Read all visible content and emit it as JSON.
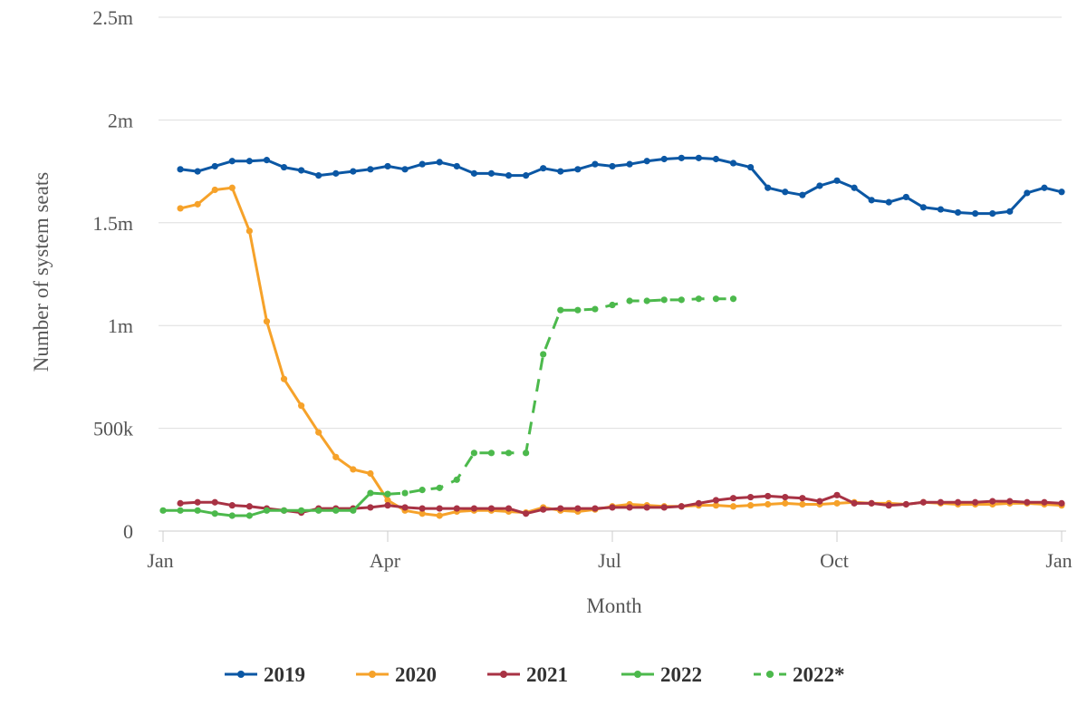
{
  "chart_data": {
    "type": "line",
    "title": "",
    "xlabel": "Month",
    "ylabel": "Number of system seats",
    "x_ticks": [
      "Jan",
      "Apr",
      "Jul",
      "Oct",
      "Jan"
    ],
    "x_tick_weeks": [
      0,
      13,
      26,
      39,
      52
    ],
    "x_range_weeks": [
      0,
      52
    ],
    "y_ticks": [
      {
        "value": 0,
        "label": "0"
      },
      {
        "value": 500000,
        "label": "500k"
      },
      {
        "value": 1000000,
        "label": "1m"
      },
      {
        "value": 1500000,
        "label": "1.5m"
      },
      {
        "value": 2000000,
        "label": "2m"
      },
      {
        "value": 2500000,
        "label": "2.5m"
      }
    ],
    "ylim": [
      0,
      2500000
    ],
    "grid": "horizontal",
    "legend_position": "bottom",
    "series": [
      {
        "name": "2019",
        "color": "#0b57a4",
        "dashed": false,
        "x": [
          1,
          2,
          3,
          4,
          5,
          6,
          7,
          8,
          9,
          10,
          11,
          12,
          13,
          14,
          15,
          16,
          17,
          18,
          19,
          20,
          21,
          22,
          23,
          24,
          25,
          26,
          27,
          28,
          29,
          30,
          31,
          32,
          33,
          34,
          35,
          36,
          37,
          38,
          39,
          40,
          41,
          42,
          43,
          44,
          45,
          46,
          47,
          48,
          49,
          50,
          51,
          52
        ],
        "y": [
          1760000,
          1750000,
          1775000,
          1800000,
          1800000,
          1805000,
          1770000,
          1755000,
          1730000,
          1740000,
          1750000,
          1760000,
          1775000,
          1760000,
          1785000,
          1795000,
          1775000,
          1740000,
          1740000,
          1730000,
          1730000,
          1765000,
          1750000,
          1760000,
          1785000,
          1775000,
          1785000,
          1800000,
          1810000,
          1815000,
          1815000,
          1810000,
          1790000,
          1770000,
          1670000,
          1650000,
          1635000,
          1680000,
          1705000,
          1670000,
          1610000,
          1600000,
          1625000,
          1575000,
          1565000,
          1550000,
          1545000,
          1545000,
          1555000,
          1645000,
          1670000,
          1650000
        ]
      },
      {
        "name": "2020",
        "color": "#f6a22a",
        "dashed": false,
        "x": [
          1,
          2,
          3,
          4,
          5,
          6,
          7,
          8,
          9,
          10,
          11,
          12,
          13,
          14,
          15,
          16,
          17,
          18,
          19,
          20,
          21,
          22,
          23,
          24,
          25,
          26,
          27,
          28,
          29,
          30,
          31,
          32,
          33,
          34,
          35,
          36,
          37,
          38,
          39,
          40,
          41,
          42,
          43,
          44,
          45,
          46,
          47,
          48,
          49,
          50,
          51,
          52
        ],
        "y": [
          1570000,
          1590000,
          1660000,
          1670000,
          1460000,
          1020000,
          740000,
          610000,
          480000,
          360000,
          300000,
          280000,
          150000,
          100000,
          85000,
          75000,
          95000,
          100000,
          100000,
          95000,
          90000,
          115000,
          100000,
          95000,
          105000,
          120000,
          130000,
          125000,
          120000,
          120000,
          125000,
          125000,
          120000,
          125000,
          130000,
          135000,
          130000,
          130000,
          135000,
          140000,
          135000,
          135000,
          130000,
          140000,
          135000,
          130000,
          130000,
          130000,
          135000,
          135000,
          130000,
          125000
        ]
      },
      {
        "name": "2021",
        "color": "#a83244",
        "dashed": false,
        "x": [
          1,
          2,
          3,
          4,
          5,
          6,
          7,
          8,
          9,
          10,
          11,
          12,
          13,
          14,
          15,
          16,
          17,
          18,
          19,
          20,
          21,
          22,
          23,
          24,
          25,
          26,
          27,
          28,
          29,
          30,
          31,
          32,
          33,
          34,
          35,
          36,
          37,
          38,
          39,
          40,
          41,
          42,
          43,
          44,
          45,
          46,
          47,
          48,
          49,
          50,
          51,
          52
        ],
        "y": [
          135000,
          140000,
          140000,
          125000,
          120000,
          110000,
          100000,
          90000,
          110000,
          110000,
          110000,
          115000,
          125000,
          115000,
          110000,
          110000,
          110000,
          110000,
          110000,
          110000,
          85000,
          105000,
          110000,
          110000,
          110000,
          115000,
          115000,
          115000,
          115000,
          120000,
          135000,
          150000,
          160000,
          165000,
          170000,
          165000,
          160000,
          145000,
          175000,
          135000,
          135000,
          125000,
          130000,
          140000,
          140000,
          140000,
          140000,
          145000,
          145000,
          140000,
          140000,
          135000
        ]
      },
      {
        "name": "2022",
        "color": "#4cb94c",
        "dashed": false,
        "x": [
          0,
          1,
          2,
          3,
          4,
          5,
          6,
          7,
          8,
          9,
          10,
          11,
          12,
          13
        ],
        "y": [
          100000,
          100000,
          100000,
          85000,
          75000,
          75000,
          100000,
          100000,
          100000,
          100000,
          100000,
          100000,
          185000,
          180000
        ]
      },
      {
        "name": "2022*",
        "color": "#4cb94c",
        "dashed": true,
        "x": [
          13,
          14,
          15,
          16,
          17,
          18,
          19,
          20,
          21,
          22,
          23,
          24,
          25,
          26,
          27,
          28,
          29,
          30,
          31,
          32,
          33
        ],
        "y": [
          180000,
          185000,
          200000,
          210000,
          250000,
          380000,
          380000,
          380000,
          380000,
          860000,
          1075000,
          1075000,
          1080000,
          1100000,
          1120000,
          1120000,
          1125000,
          1125000,
          1130000,
          1130000,
          1130000
        ]
      }
    ]
  }
}
